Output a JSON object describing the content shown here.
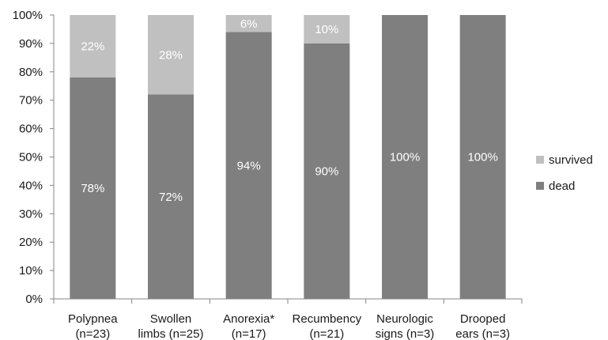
{
  "chart_data": {
    "type": "bar",
    "stacked": true,
    "percent": true,
    "categories": [
      [
        "Polypnea",
        "(n=23)"
      ],
      [
        "Swollen",
        "limbs (n=25)"
      ],
      [
        "Anorexia*",
        "(n=17)"
      ],
      [
        "Recumbency",
        "(n=21)"
      ],
      [
        "Neurologic",
        "signs (n=3)"
      ],
      [
        "Drooped",
        "ears (n=3)"
      ]
    ],
    "series": [
      {
        "name": "dead",
        "values": [
          78,
          72,
          94,
          90,
          100,
          100
        ],
        "labels": [
          "78%",
          "72%",
          "94%",
          "90%",
          "100%",
          "100%"
        ],
        "color": "#7f7f7f"
      },
      {
        "name": "survived",
        "values": [
          22,
          28,
          6,
          10,
          0,
          0
        ],
        "labels": [
          "22%",
          "28%",
          "6%",
          "10%",
          "",
          ""
        ],
        "color": "#c0c0c0"
      }
    ],
    "ylim": [
      0,
      100
    ],
    "yticks": [
      "0%",
      "10%",
      "20%",
      "30%",
      "40%",
      "50%",
      "60%",
      "70%",
      "80%",
      "90%",
      "100%"
    ],
    "grid": false,
    "legend": {
      "position": "right",
      "order": [
        "survived",
        "dead"
      ]
    },
    "title": "",
    "xlabel": "",
    "ylabel": ""
  }
}
